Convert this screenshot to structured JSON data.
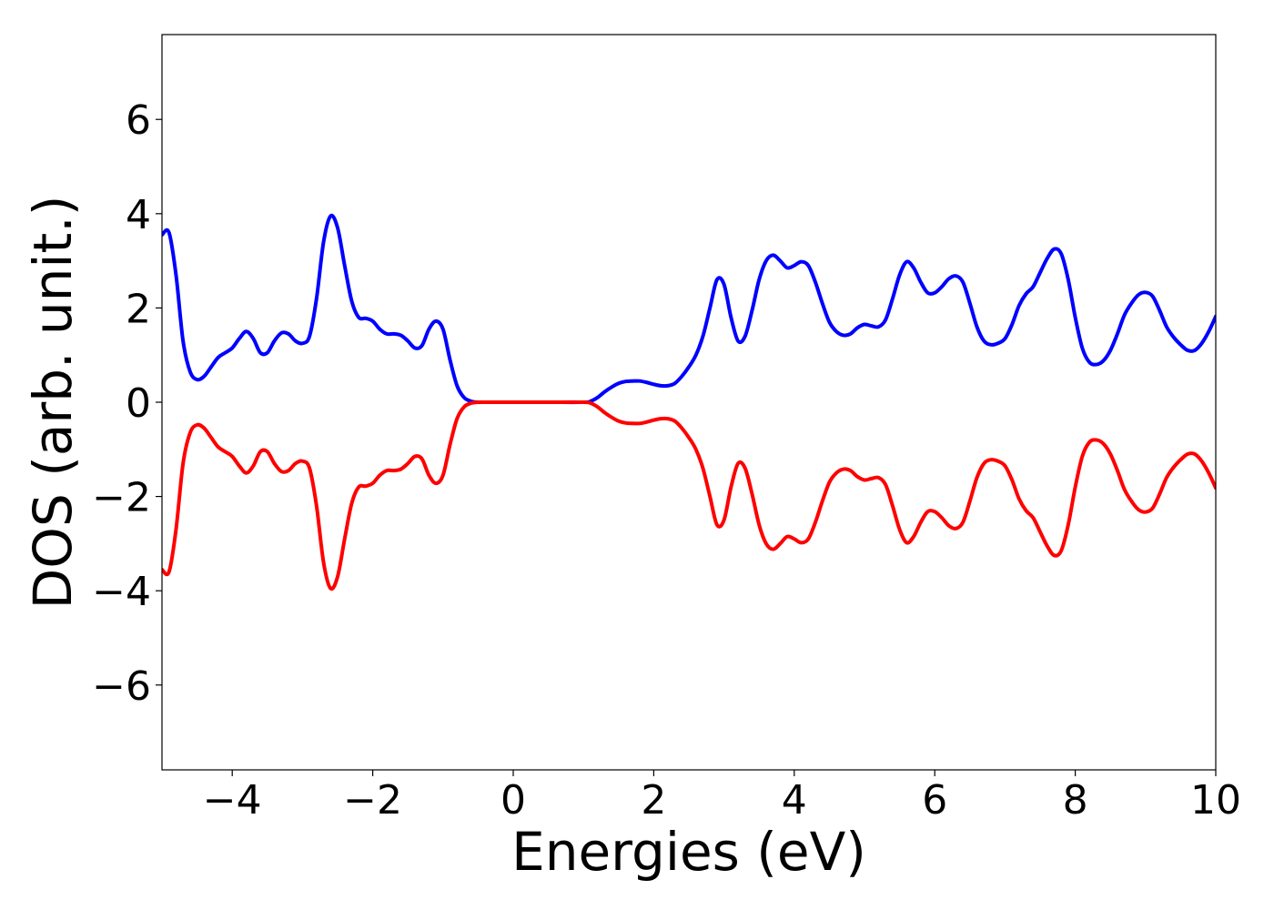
{
  "chart_data": {
    "type": "line",
    "title": "",
    "xlabel": "Energies (eV)",
    "ylabel": "DOS (arb. unit.)",
    "xlim": [
      -5,
      10
    ],
    "ylim": [
      -7.8,
      7.8
    ],
    "grid": false,
    "legend": "none",
    "x_ticks": [
      -4,
      -2,
      0,
      2,
      4,
      6,
      8,
      10
    ],
    "x_tick_labels": [
      "−4",
      "−2",
      "0",
      "2",
      "4",
      "6",
      "8",
      "10"
    ],
    "y_ticks": [
      -6,
      -4,
      -2,
      0,
      2,
      4,
      6
    ],
    "y_tick_labels": [
      "−6",
      "−4",
      "−2",
      "0",
      "2",
      "4",
      "6"
    ],
    "series": [
      {
        "color": "#0000ff",
        "x": [
          -5.0,
          -4.9,
          -4.8,
          -4.7,
          -4.6,
          -4.5,
          -4.4,
          -4.3,
          -4.2,
          -4.1,
          -4.0,
          -3.9,
          -3.8,
          -3.7,
          -3.6,
          -3.5,
          -3.4,
          -3.3,
          -3.2,
          -3.1,
          -3.0,
          -2.9,
          -2.8,
          -2.7,
          -2.6,
          -2.5,
          -2.4,
          -2.3,
          -2.2,
          -2.1,
          -2.0,
          -1.9,
          -1.8,
          -1.7,
          -1.6,
          -1.5,
          -1.4,
          -1.3,
          -1.2,
          -1.1,
          -1.0,
          -0.9,
          -0.8,
          -0.7,
          -0.6,
          -0.5,
          -0.4,
          0.0,
          0.5,
          1.0,
          1.1,
          1.2,
          1.3,
          1.4,
          1.5,
          1.6,
          1.7,
          1.8,
          1.9,
          2.0,
          2.1,
          2.2,
          2.3,
          2.4,
          2.5,
          2.6,
          2.7,
          2.8,
          2.9,
          3.0,
          3.1,
          3.2,
          3.3,
          3.4,
          3.5,
          3.6,
          3.7,
          3.8,
          3.9,
          4.0,
          4.1,
          4.2,
          4.3,
          4.4,
          4.5,
          4.6,
          4.7,
          4.8,
          4.9,
          5.0,
          5.1,
          5.2,
          5.3,
          5.4,
          5.5,
          5.6,
          5.7,
          5.8,
          5.9,
          6.0,
          6.1,
          6.2,
          6.3,
          6.4,
          6.5,
          6.6,
          6.7,
          6.8,
          6.9,
          7.0,
          7.1,
          7.2,
          7.3,
          7.4,
          7.5,
          7.6,
          7.7,
          7.8,
          7.9,
          8.0,
          8.1,
          8.2,
          8.3,
          8.4,
          8.5,
          8.6,
          8.7,
          8.8,
          8.9,
          9.0,
          9.1,
          9.2,
          9.3,
          9.4,
          9.5,
          9.6,
          9.7,
          9.8,
          9.9,
          10.0
        ],
        "y": [
          3.55,
          3.6,
          2.7,
          1.3,
          0.65,
          0.48,
          0.55,
          0.75,
          0.95,
          1.05,
          1.15,
          1.35,
          1.5,
          1.35,
          1.05,
          1.05,
          1.3,
          1.47,
          1.45,
          1.3,
          1.25,
          1.4,
          2.2,
          3.4,
          3.95,
          3.7,
          2.9,
          2.15,
          1.8,
          1.78,
          1.72,
          1.55,
          1.45,
          1.45,
          1.42,
          1.3,
          1.15,
          1.2,
          1.55,
          1.72,
          1.55,
          0.9,
          0.35,
          0.1,
          0.02,
          0.0,
          0.0,
          0.0,
          0.0,
          0.0,
          0.02,
          0.1,
          0.22,
          0.32,
          0.4,
          0.44,
          0.45,
          0.45,
          0.42,
          0.38,
          0.35,
          0.35,
          0.4,
          0.55,
          0.75,
          1.0,
          1.4,
          2.0,
          2.6,
          2.5,
          1.8,
          1.3,
          1.4,
          1.95,
          2.6,
          3.0,
          3.12,
          3.0,
          2.85,
          2.9,
          2.98,
          2.9,
          2.55,
          2.1,
          1.7,
          1.5,
          1.42,
          1.45,
          1.58,
          1.65,
          1.62,
          1.6,
          1.75,
          2.2,
          2.7,
          2.98,
          2.85,
          2.55,
          2.32,
          2.32,
          2.45,
          2.62,
          2.68,
          2.55,
          2.1,
          1.6,
          1.3,
          1.22,
          1.25,
          1.35,
          1.65,
          2.05,
          2.3,
          2.45,
          2.75,
          3.05,
          3.25,
          3.15,
          2.6,
          1.8,
          1.15,
          0.85,
          0.8,
          0.88,
          1.1,
          1.45,
          1.85,
          2.1,
          2.28,
          2.33,
          2.25,
          1.95,
          1.6,
          1.38,
          1.22,
          1.1,
          1.1,
          1.25,
          1.5,
          1.82
        ]
      },
      {
        "color": "#ff0000",
        "x": [
          -5.0,
          -4.9,
          -4.8,
          -4.7,
          -4.6,
          -4.5,
          -4.4,
          -4.3,
          -4.2,
          -4.1,
          -4.0,
          -3.9,
          -3.8,
          -3.7,
          -3.6,
          -3.5,
          -3.4,
          -3.3,
          -3.2,
          -3.1,
          -3.0,
          -2.9,
          -2.8,
          -2.7,
          -2.6,
          -2.5,
          -2.4,
          -2.3,
          -2.2,
          -2.1,
          -2.0,
          -1.9,
          -1.8,
          -1.7,
          -1.6,
          -1.5,
          -1.4,
          -1.3,
          -1.2,
          -1.1,
          -1.0,
          -0.9,
          -0.8,
          -0.7,
          -0.6,
          -0.5,
          -0.4,
          0.0,
          0.5,
          1.0,
          1.1,
          1.2,
          1.3,
          1.4,
          1.5,
          1.6,
          1.7,
          1.8,
          1.9,
          2.0,
          2.1,
          2.2,
          2.3,
          2.4,
          2.5,
          2.6,
          2.7,
          2.8,
          2.9,
          3.0,
          3.1,
          3.2,
          3.3,
          3.4,
          3.5,
          3.6,
          3.7,
          3.8,
          3.9,
          4.0,
          4.1,
          4.2,
          4.3,
          4.4,
          4.5,
          4.6,
          4.7,
          4.8,
          4.9,
          5.0,
          5.1,
          5.2,
          5.3,
          5.4,
          5.5,
          5.6,
          5.7,
          5.8,
          5.9,
          6.0,
          6.1,
          6.2,
          6.3,
          6.4,
          6.5,
          6.6,
          6.7,
          6.8,
          6.9,
          7.0,
          7.1,
          7.2,
          7.3,
          7.4,
          7.5,
          7.6,
          7.7,
          7.8,
          7.9,
          8.0,
          8.1,
          8.2,
          8.3,
          8.4,
          8.5,
          8.6,
          8.7,
          8.8,
          8.9,
          9.0,
          9.1,
          9.2,
          9.3,
          9.4,
          9.5,
          9.6,
          9.7,
          9.8,
          9.9,
          10.0
        ],
        "y": [
          -3.55,
          -3.6,
          -2.7,
          -1.3,
          -0.65,
          -0.48,
          -0.55,
          -0.75,
          -0.95,
          -1.05,
          -1.15,
          -1.35,
          -1.5,
          -1.35,
          -1.05,
          -1.05,
          -1.3,
          -1.47,
          -1.45,
          -1.3,
          -1.25,
          -1.4,
          -2.2,
          -3.4,
          -3.95,
          -3.7,
          -2.9,
          -2.15,
          -1.8,
          -1.78,
          -1.72,
          -1.55,
          -1.45,
          -1.45,
          -1.42,
          -1.3,
          -1.15,
          -1.2,
          -1.55,
          -1.72,
          -1.55,
          -0.9,
          -0.35,
          -0.1,
          -0.02,
          0.0,
          0.0,
          0.0,
          0.0,
          0.0,
          -0.02,
          -0.1,
          -0.22,
          -0.32,
          -0.4,
          -0.44,
          -0.45,
          -0.45,
          -0.42,
          -0.38,
          -0.35,
          -0.35,
          -0.4,
          -0.55,
          -0.75,
          -1.0,
          -1.4,
          -2.0,
          -2.6,
          -2.5,
          -1.8,
          -1.3,
          -1.4,
          -1.95,
          -2.6,
          -3.0,
          -3.12,
          -3.0,
          -2.85,
          -2.9,
          -2.98,
          -2.9,
          -2.55,
          -2.1,
          -1.7,
          -1.5,
          -1.42,
          -1.45,
          -1.58,
          -1.65,
          -1.62,
          -1.6,
          -1.75,
          -2.2,
          -2.7,
          -2.98,
          -2.85,
          -2.55,
          -2.32,
          -2.32,
          -2.45,
          -2.62,
          -2.68,
          -2.55,
          -2.1,
          -1.6,
          -1.3,
          -1.22,
          -1.25,
          -1.35,
          -1.65,
          -2.05,
          -2.3,
          -2.45,
          -2.75,
          -3.05,
          -3.25,
          -3.15,
          -2.6,
          -1.8,
          -1.15,
          -0.85,
          -0.8,
          -0.88,
          -1.1,
          -1.45,
          -1.85,
          -2.1,
          -2.28,
          -2.33,
          -2.25,
          -1.95,
          -1.6,
          -1.38,
          -1.22,
          -1.1,
          -1.1,
          -1.25,
          -1.5,
          -1.82
        ]
      }
    ]
  }
}
